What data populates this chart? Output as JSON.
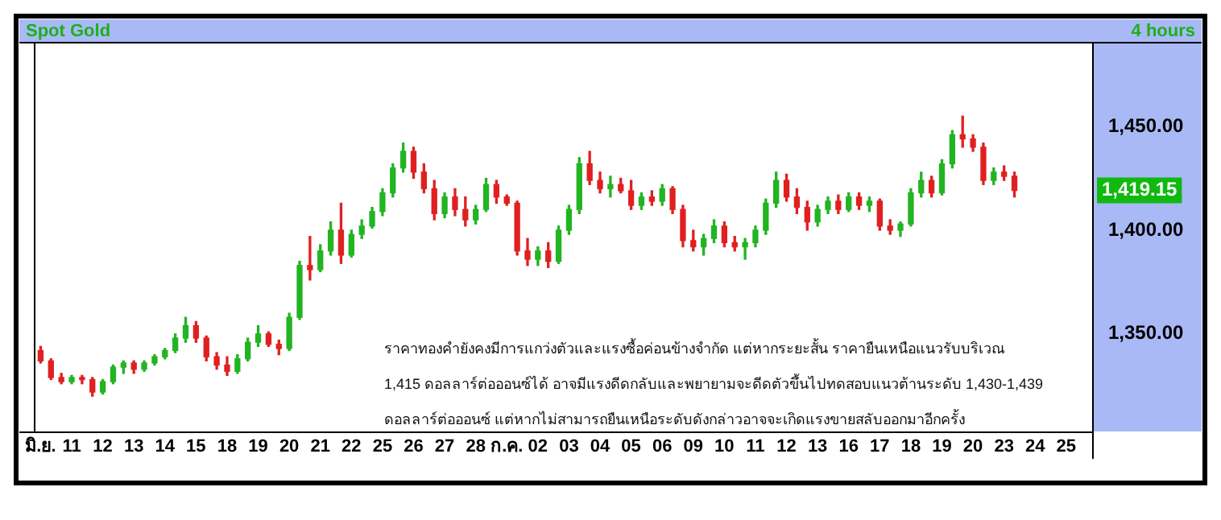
{
  "chart_data": {
    "type": "candlestick",
    "title": "Spot Gold",
    "subtitle": "4 hours",
    "categories": [
      "มิ.ย.",
      null,
      null,
      "11",
      null,
      null,
      "12",
      null,
      null,
      "13",
      null,
      null,
      "14",
      null,
      null,
      "15",
      null,
      null,
      "18",
      null,
      null,
      "19",
      null,
      null,
      "20",
      null,
      null,
      "21",
      null,
      null,
      "22",
      null,
      null,
      "25",
      null,
      null,
      "26",
      null,
      null,
      "27",
      null,
      null,
      "28",
      null,
      null,
      "ก.ค.",
      null,
      null,
      "02",
      null,
      null,
      "03",
      null,
      null,
      "04",
      null,
      null,
      "05",
      null,
      null,
      "06",
      null,
      null,
      "09",
      null,
      null,
      "10",
      null,
      null,
      "11",
      null,
      null,
      "12",
      null,
      null,
      "13",
      null,
      null,
      "16",
      null,
      null,
      "17",
      null,
      null,
      "18",
      null,
      null,
      "19",
      null,
      null,
      "20",
      null,
      null,
      "23",
      null,
      null,
      "24",
      null,
      null,
      "25",
      null,
      null
    ],
    "ohlc": [
      [
        1342,
        1344,
        1336,
        1337
      ],
      [
        1337,
        1338,
        1328,
        1329
      ],
      [
        1329,
        1331,
        1326,
        1327
      ],
      [
        1327,
        1330,
        1326,
        1329
      ],
      [
        1329,
        1330,
        1326,
        1328
      ],
      [
        1328,
        1329,
        1320,
        1322
      ],
      [
        1322,
        1328,
        1321,
        1327
      ],
      [
        1327,
        1335,
        1326,
        1334
      ],
      [
        1334,
        1337,
        1331,
        1336
      ],
      [
        1336,
        1337,
        1331,
        1333
      ],
      [
        1333,
        1337,
        1332,
        1336
      ],
      [
        1336,
        1340,
        1335,
        1339
      ],
      [
        1339,
        1343,
        1338,
        1342
      ],
      [
        1342,
        1350,
        1341,
        1348
      ],
      [
        1348,
        1358,
        1346,
        1354
      ],
      [
        1354,
        1356,
        1346,
        1348
      ],
      [
        1348,
        1349,
        1337,
        1339
      ],
      [
        1339,
        1341,
        1333,
        1335
      ],
      [
        1335,
        1339,
        1330,
        1332
      ],
      [
        1332,
        1340,
        1331,
        1338
      ],
      [
        1338,
        1348,
        1337,
        1346
      ],
      [
        1346,
        1354,
        1344,
        1350
      ],
      [
        1350,
        1351,
        1344,
        1345
      ],
      [
        1345,
        1347,
        1340,
        1343
      ],
      [
        1343,
        1360,
        1342,
        1358
      ],
      [
        1358,
        1385,
        1357,
        1383
      ],
      [
        1383,
        1397,
        1376,
        1381
      ],
      [
        1381,
        1393,
        1380,
        1390
      ],
      [
        1390,
        1404,
        1388,
        1400
      ],
      [
        1400,
        1413,
        1384,
        1388
      ],
      [
        1388,
        1400,
        1387,
        1398
      ],
      [
        1398,
        1405,
        1396,
        1402
      ],
      [
        1402,
        1411,
        1401,
        1409
      ],
      [
        1409,
        1420,
        1407,
        1418
      ],
      [
        1418,
        1432,
        1416,
        1430
      ],
      [
        1430,
        1442,
        1428,
        1438
      ],
      [
        1438,
        1440,
        1425,
        1428
      ],
      [
        1428,
        1432,
        1418,
        1420
      ],
      [
        1420,
        1424,
        1405,
        1408
      ],
      [
        1408,
        1418,
        1406,
        1416
      ],
      [
        1416,
        1420,
        1407,
        1410
      ],
      [
        1410,
        1416,
        1402,
        1405
      ],
      [
        1405,
        1412,
        1403,
        1410
      ],
      [
        1410,
        1425,
        1409,
        1422
      ],
      [
        1422,
        1424,
        1413,
        1416
      ],
      [
        1416,
        1417,
        1412,
        1413
      ],
      [
        1413,
        1414,
        1388,
        1390
      ],
      [
        1390,
        1396,
        1383,
        1386
      ],
      [
        1386,
        1392,
        1383,
        1390
      ],
      [
        1390,
        1394,
        1382,
        1385
      ],
      [
        1385,
        1402,
        1384,
        1400
      ],
      [
        1400,
        1412,
        1398,
        1410
      ],
      [
        1410,
        1435,
        1408,
        1432
      ],
      [
        1432,
        1438,
        1422,
        1424
      ],
      [
        1424,
        1428,
        1418,
        1420
      ],
      [
        1420,
        1426,
        1416,
        1422
      ],
      [
        1422,
        1425,
        1418,
        1419
      ],
      [
        1419,
        1424,
        1410,
        1412
      ],
      [
        1412,
        1418,
        1410,
        1416
      ],
      [
        1416,
        1419,
        1412,
        1414
      ],
      [
        1414,
        1422,
        1412,
        1420
      ],
      [
        1420,
        1421,
        1408,
        1410
      ],
      [
        1410,
        1412,
        1392,
        1395
      ],
      [
        1395,
        1400,
        1390,
        1392
      ],
      [
        1392,
        1398,
        1388,
        1396
      ],
      [
        1396,
        1405,
        1394,
        1402
      ],
      [
        1402,
        1404,
        1392,
        1394
      ],
      [
        1394,
        1397,
        1390,
        1392
      ],
      [
        1392,
        1396,
        1386,
        1394
      ],
      [
        1394,
        1402,
        1392,
        1400
      ],
      [
        1400,
        1415,
        1398,
        1413
      ],
      [
        1413,
        1428,
        1411,
        1424
      ],
      [
        1424,
        1427,
        1414,
        1416
      ],
      [
        1416,
        1420,
        1408,
        1411
      ],
      [
        1411,
        1414,
        1400,
        1404
      ],
      [
        1404,
        1412,
        1402,
        1410
      ],
      [
        1410,
        1416,
        1408,
        1414
      ],
      [
        1414,
        1417,
        1408,
        1410
      ],
      [
        1410,
        1418,
        1409,
        1416
      ],
      [
        1416,
        1418,
        1410,
        1412
      ],
      [
        1412,
        1416,
        1409,
        1414
      ],
      [
        1414,
        1415,
        1400,
        1402
      ],
      [
        1402,
        1405,
        1398,
        1400
      ],
      [
        1400,
        1404,
        1397,
        1403
      ],
      [
        1403,
        1420,
        1402,
        1418
      ],
      [
        1418,
        1428,
        1416,
        1424
      ],
      [
        1424,
        1426,
        1416,
        1418
      ],
      [
        1418,
        1434,
        1417,
        1432
      ],
      [
        1432,
        1448,
        1430,
        1446
      ],
      [
        1446,
        1455,
        1440,
        1444
      ],
      [
        1444,
        1446,
        1438,
        1440
      ],
      [
        1440,
        1442,
        1422,
        1424
      ],
      [
        1424,
        1430,
        1422,
        1428
      ],
      [
        1428,
        1431,
        1424,
        1426
      ],
      [
        1426,
        1428,
        1416,
        1419.15
      ],
      null,
      null,
      null,
      null,
      null,
      null,
      null
    ],
    "colors": [
      "#e02020",
      "#e02020",
      "#e02020",
      "#22b422",
      "#e02020",
      "#e02020",
      "#22b422",
      "#22b422",
      "#22b422",
      "#e02020",
      "#22b422",
      "#22b422",
      "#22b422",
      "#22b422",
      "#22b422",
      "#e02020",
      "#e02020",
      "#e02020",
      "#e02020",
      "#22b422",
      "#22b422",
      "#22b422",
      "#e02020",
      "#e02020",
      "#22b422",
      "#22b422",
      "#e02020",
      "#22b422",
      "#22b422",
      "#e02020",
      "#22b422",
      "#22b422",
      "#22b422",
      "#22b422",
      "#22b422",
      "#22b422",
      "#e02020",
      "#e02020",
      "#e02020",
      "#22b422",
      "#e02020",
      "#e02020",
      "#22b422",
      "#22b422",
      "#e02020",
      "#e02020",
      "#e02020",
      "#e02020",
      "#22b422",
      "#e02020",
      "#22b422",
      "#22b422",
      "#22b422",
      "#e02020",
      "#e02020",
      "#22b422",
      "#e02020",
      "#e02020",
      "#22b422",
      "#e02020",
      "#22b422",
      "#e02020",
      "#e02020",
      "#e02020",
      "#22b422",
      "#22b422",
      "#e02020",
      "#e02020",
      "#22b422",
      "#22b422",
      "#22b422",
      "#22b422",
      "#e02020",
      "#e02020",
      "#e02020",
      "#22b422",
      "#22b422",
      "#e02020",
      "#22b422",
      "#e02020",
      "#22b422",
      "#e02020",
      "#e02020",
      "#22b422",
      "#22b422",
      "#22b422",
      "#e02020",
      "#22b422",
      "#22b422",
      "#e02020",
      "#e02020",
      "#e02020",
      "#22b422",
      "#e02020",
      "#e02020",
      null,
      null,
      null,
      null,
      null,
      null,
      null
    ],
    "ylim": [
      1303,
      1490
    ],
    "yticks": [
      {
        "value": 1350,
        "label": "1,350.00"
      },
      {
        "value": 1400,
        "label": "1,400.00"
      },
      {
        "value": 1450,
        "label": "1,450.00"
      }
    ],
    "grid": false,
    "legend": false,
    "annotations": [
      "ราคาทองคำยังคงมีการแกว่งตัวและแรงซื้อค่อนข้างจำกัด แต่หากระยะสั้น ราคายืนเหนือแนวรับบริเวณ",
      "1,415 ดอลลาร์ต่อออนซ์ได้ อาจมีแรงดีดกลับและพยายามจะดีดตัวขึ้นไปทดสอบแนวต้านระดับ 1,430-1,439",
      "ดอลลาร์ต่อออนซ์ แต่หากไม่สามารถยืนเหนือระดับดังกล่าวอาจจะเกิดแรงขายสลับออกมาอีกครั้ง",
      "1,419.15"
    ]
  }
}
